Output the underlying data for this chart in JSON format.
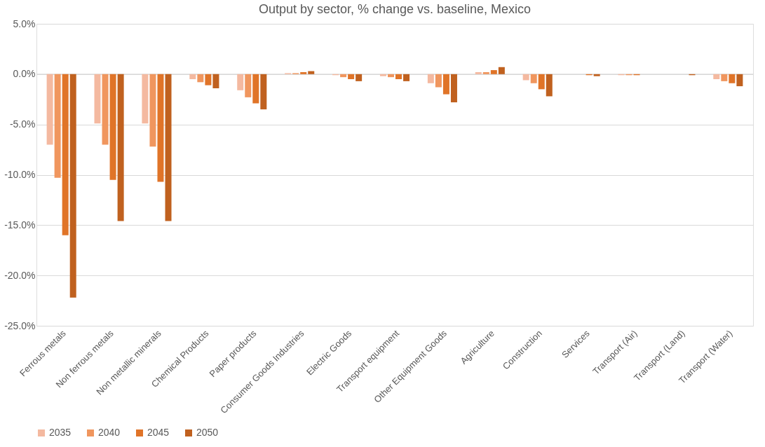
{
  "chart_data": {
    "type": "bar",
    "title": "Output by sector, % change vs. baseline, Mexico",
    "categories": [
      "Ferrous metals",
      "Non ferrous metals",
      "Non metallic minerals",
      "Chemical Products",
      "Paper products",
      "Consumer Goods Industries",
      "Electric Goods",
      "Transport equipment",
      "Other Equipment Goods",
      "Agriculture",
      "Construction",
      "Services",
      "Transport (Air)",
      "Transport (Land)",
      "Transport (Water)"
    ],
    "series": [
      {
        "name": "2035",
        "color": "#f4b9a0",
        "values": [
          -7.0,
          -4.9,
          -4.9,
          -0.5,
          -1.6,
          0.1,
          -0.1,
          -0.2,
          -0.9,
          0.2,
          -0.6,
          0.0,
          -0.1,
          0.0,
          -0.5
        ]
      },
      {
        "name": "2040",
        "color": "#f0965e",
        "values": [
          -10.3,
          -7.0,
          -7.2,
          -0.8,
          -2.3,
          0.1,
          -0.3,
          -0.3,
          -1.3,
          0.2,
          -0.9,
          0.0,
          -0.1,
          0.0,
          -0.7
        ]
      },
      {
        "name": "2045",
        "color": "#e07428",
        "values": [
          -16.0,
          -10.5,
          -10.7,
          -1.1,
          -2.9,
          0.2,
          -0.5,
          -0.5,
          -2.0,
          0.4,
          -1.5,
          -0.1,
          -0.1,
          0.0,
          -0.9
        ]
      },
      {
        "name": "2050",
        "color": "#c0611f",
        "values": [
          -22.2,
          -14.6,
          -14.6,
          -1.4,
          -3.5,
          0.3,
          -0.7,
          -0.7,
          -2.8,
          0.7,
          -2.2,
          -0.2,
          0.0,
          -0.1,
          -1.2
        ]
      }
    ],
    "ylim": [
      -25,
      5
    ],
    "yticks": [
      {
        "value": 5,
        "label": "5.0%"
      },
      {
        "value": 0,
        "label": "0.0%"
      },
      {
        "value": -5,
        "label": "-5.0%"
      },
      {
        "value": -10,
        "label": "-10.0%"
      },
      {
        "value": -15,
        "label": "-15.0%"
      },
      {
        "value": -20,
        "label": "-20.0%"
      },
      {
        "value": -25,
        "label": "-25.0%"
      }
    ],
    "grid": "y",
    "legend": "bottom"
  }
}
